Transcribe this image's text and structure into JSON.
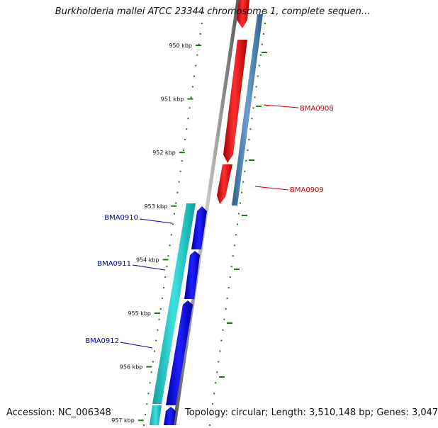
{
  "title": "Burkholderia mallei ATCC 23344 chromosome 1, complete sequen...",
  "footer": {
    "accession_label": "Accession:",
    "accession": "NC_006348",
    "topology_label": "Topology:",
    "topology": "circular",
    "length_label": "Length:",
    "length": "3,510,148 bp",
    "genes_label": "Genes:",
    "genes": "3,047"
  },
  "colors": {
    "backbone": "#808080",
    "forward_gene": "#ee0000",
    "forward_cds": "#4682b4",
    "reverse_gene": "#0000ee",
    "reverse_cds": "#20c0c0",
    "tick": "#1a7a1a",
    "label_forward": "#cc0000",
    "label_reverse": "#0000aa"
  },
  "ruler": {
    "ticks": [
      {
        "kbp": 950,
        "label": "950 kbp"
      },
      {
        "kbp": 951,
        "label": "951 kbp"
      },
      {
        "kbp": 952,
        "label": "952 kbp"
      },
      {
        "kbp": 953,
        "label": "953 kbp"
      },
      {
        "kbp": 954,
        "label": "954 kbp"
      },
      {
        "kbp": 955,
        "label": "955 kbp"
      },
      {
        "kbp": 956,
        "label": "956 kbp"
      },
      {
        "kbp": 957,
        "label": "957 kbp"
      }
    ]
  },
  "features": [
    {
      "name": "BMA0908",
      "strand": "+"
    },
    {
      "name": "BMA0909",
      "strand": "+"
    },
    {
      "name": "BMA0910",
      "strand": "-"
    },
    {
      "name": "BMA0911",
      "strand": "-"
    },
    {
      "name": "BMA0912",
      "strand": "-"
    }
  ]
}
